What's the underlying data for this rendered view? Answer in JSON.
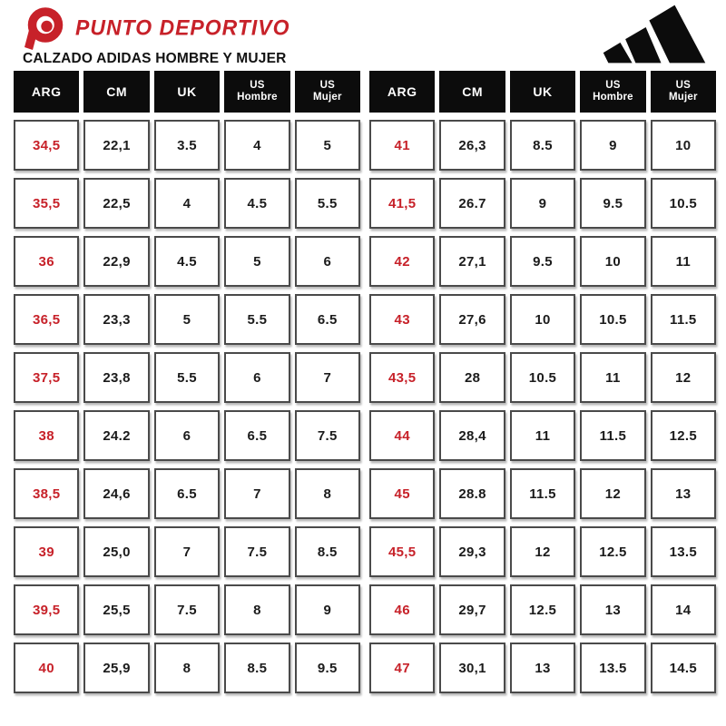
{
  "colors": {
    "accent_red": "#C72129",
    "header_black": "#0C0C0C"
  },
  "header": {
    "brand": "PUNTO DEPORTIVO",
    "brand_icon": "punto-deportivo-logo",
    "title": "CALZADO ADIDAS HOMBRE Y MUJER",
    "adidas_icon": "adidas-logo"
  },
  "chart_data": {
    "type": "table",
    "title": "CALZADO ADIDAS HOMBRE Y MUJER",
    "columns": [
      "ARG",
      "CM",
      "UK",
      "US Hombre",
      "US Mujer"
    ],
    "tables": [
      {
        "rows": [
          [
            "34,5",
            "22,1",
            "3.5",
            "4",
            "5"
          ],
          [
            "35,5",
            "22,5",
            "4",
            "4.5",
            "5.5"
          ],
          [
            "36",
            "22,9",
            "4.5",
            "5",
            "6"
          ],
          [
            "36,5",
            "23,3",
            "5",
            "5.5",
            "6.5"
          ],
          [
            "37,5",
            "23,8",
            "5.5",
            "6",
            "7"
          ],
          [
            "38",
            "24.2",
            "6",
            "6.5",
            "7.5"
          ],
          [
            "38,5",
            "24,6",
            "6.5",
            "7",
            "8"
          ],
          [
            "39",
            "25,0",
            "7",
            "7.5",
            "8.5"
          ],
          [
            "39,5",
            "25,5",
            "7.5",
            "8",
            "9"
          ],
          [
            "40",
            "25,9",
            "8",
            "8.5",
            "9.5"
          ]
        ]
      },
      {
        "rows": [
          [
            "41",
            "26,3",
            "8.5",
            "9",
            "10"
          ],
          [
            "41,5",
            "26.7",
            "9",
            "9.5",
            "10.5"
          ],
          [
            "42",
            "27,1",
            "9.5",
            "10",
            "11"
          ],
          [
            "43",
            "27,6",
            "10",
            "10.5",
            "11.5"
          ],
          [
            "43,5",
            "28",
            "10.5",
            "11",
            "12"
          ],
          [
            "44",
            "28,4",
            "11",
            "11.5",
            "12.5"
          ],
          [
            "45",
            "28.8",
            "11.5",
            "12",
            "13"
          ],
          [
            "45,5",
            "29,3",
            "12",
            "12.5",
            "13.5"
          ],
          [
            "46",
            "29,7",
            "12.5",
            "13",
            "14"
          ],
          [
            "47",
            "30,1",
            "13",
            "13.5",
            "14.5"
          ]
        ]
      }
    ]
  }
}
